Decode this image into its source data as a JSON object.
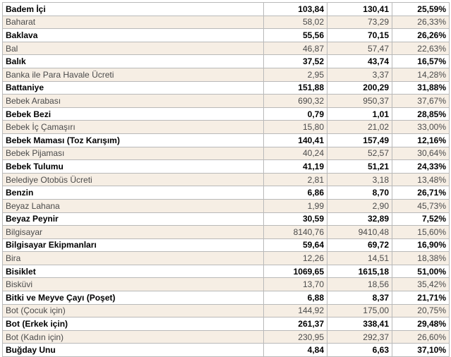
{
  "rows": [
    {
      "name": "Badem İçi",
      "v1": "103,84",
      "v2": "130,41",
      "pct": "25,59%",
      "bold": true
    },
    {
      "name": "Baharat",
      "v1": "58,02",
      "v2": "73,29",
      "pct": "26,33%",
      "bold": false
    },
    {
      "name": "Baklava",
      "v1": "55,56",
      "v2": "70,15",
      "pct": "26,26%",
      "bold": true
    },
    {
      "name": "Bal",
      "v1": "46,87",
      "v2": "57,47",
      "pct": "22,63%",
      "bold": false
    },
    {
      "name": "Balık",
      "v1": "37,52",
      "v2": "43,74",
      "pct": "16,57%",
      "bold": true
    },
    {
      "name": "Banka ile Para Havale Ücreti",
      "v1": "2,95",
      "v2": "3,37",
      "pct": "14,28%",
      "bold": false
    },
    {
      "name": "Battaniye",
      "v1": "151,88",
      "v2": "200,29",
      "pct": "31,88%",
      "bold": true
    },
    {
      "name": "Bebek Arabası",
      "v1": "690,32",
      "v2": "950,37",
      "pct": "37,67%",
      "bold": false
    },
    {
      "name": "Bebek Bezi",
      "v1": "0,79",
      "v2": "1,01",
      "pct": "28,85%",
      "bold": true
    },
    {
      "name": "Bebek İç Çamaşırı",
      "v1": "15,80",
      "v2": "21,02",
      "pct": "33,00%",
      "bold": false
    },
    {
      "name": "Bebek Maması (Toz Karışım)",
      "v1": "140,41",
      "v2": "157,49",
      "pct": "12,16%",
      "bold": true
    },
    {
      "name": "Bebek Pijaması",
      "v1": "40,24",
      "v2": "52,57",
      "pct": "30,64%",
      "bold": false
    },
    {
      "name": "Bebek Tulumu",
      "v1": "41,19",
      "v2": "51,21",
      "pct": "24,33%",
      "bold": true
    },
    {
      "name": "Belediye Otobüs Ücreti",
      "v1": "2,81",
      "v2": "3,18",
      "pct": "13,48%",
      "bold": false
    },
    {
      "name": "Benzin",
      "v1": "6,86",
      "v2": "8,70",
      "pct": "26,71%",
      "bold": true
    },
    {
      "name": "Beyaz Lahana",
      "v1": "1,99",
      "v2": "2,90",
      "pct": "45,73%",
      "bold": false
    },
    {
      "name": "Beyaz Peynir",
      "v1": "30,59",
      "v2": "32,89",
      "pct": "7,52%",
      "bold": true
    },
    {
      "name": "Bilgisayar",
      "v1": "8140,76",
      "v2": "9410,48",
      "pct": "15,60%",
      "bold": false
    },
    {
      "name": "Bilgisayar Ekipmanları",
      "v1": "59,64",
      "v2": "69,72",
      "pct": "16,90%",
      "bold": true
    },
    {
      "name": "Bira",
      "v1": "12,26",
      "v2": "14,51",
      "pct": "18,38%",
      "bold": false
    },
    {
      "name": "Bisiklet",
      "v1": "1069,65",
      "v2": "1615,18",
      "pct": "51,00%",
      "bold": true
    },
    {
      "name": "Bisküvi",
      "v1": "13,70",
      "v2": "18,56",
      "pct": "35,42%",
      "bold": false
    },
    {
      "name": "Bitki ve Meyve Çayı (Poşet)",
      "v1": "6,88",
      "v2": "8,37",
      "pct": "21,71%",
      "bold": true
    },
    {
      "name": "Bot (Çocuk için)",
      "v1": "144,92",
      "v2": "175,00",
      "pct": "20,75%",
      "bold": false
    },
    {
      "name": "Bot (Erkek için)",
      "v1": "261,37",
      "v2": "338,41",
      "pct": "29,48%",
      "bold": true
    },
    {
      "name": "Bot (Kadın için)",
      "v1": "230,95",
      "v2": "292,37",
      "pct": "26,60%",
      "bold": false
    },
    {
      "name": "Buğday Unu",
      "v1": "4,84",
      "v2": "6,63",
      "pct": "37,10%",
      "bold": true
    }
  ]
}
